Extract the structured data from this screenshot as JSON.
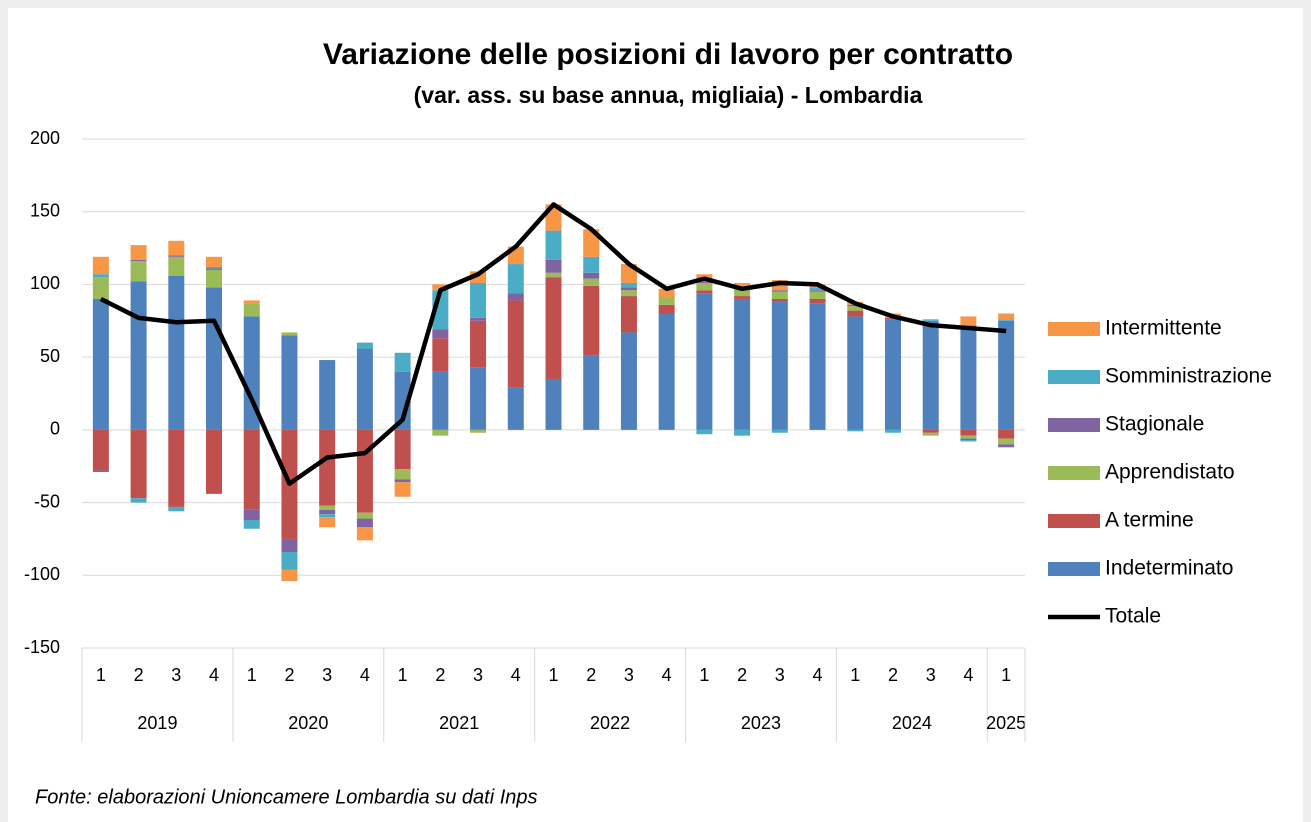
{
  "chart_data": {
    "type": "stacked-bar-line",
    "title": "Variazione delle posizioni di lavoro per contratto",
    "subtitle": "(var. ass. su base annua, migliaia) - Lombardia",
    "note": "Fonte: elaborazioni Unioncamere Lombardia su dati Inps",
    "categories": [
      "1",
      "2",
      "3",
      "4",
      "1",
      "2",
      "3",
      "4",
      "1",
      "2",
      "3",
      "4",
      "1",
      "2",
      "3",
      "4",
      "1",
      "2",
      "3",
      "4",
      "1",
      "2",
      "3",
      "4",
      "1"
    ],
    "year_groups": [
      {
        "name": "2019",
        "size": 4
      },
      {
        "name": "2020",
        "size": 4
      },
      {
        "name": "2021",
        "size": 4
      },
      {
        "name": "2022",
        "size": 4
      },
      {
        "name": "2023",
        "size": 4
      },
      {
        "name": "2024",
        "size": 4
      },
      {
        "name": "2025",
        "size": 1
      }
    ],
    "series": [
      {
        "name": "Indeterminato",
        "color": "#4f81bd",
        "values": [
          90,
          102,
          106,
          98,
          78,
          65,
          48,
          56,
          40,
          40,
          43,
          29,
          35,
          51,
          67,
          80,
          94,
          90,
          88,
          87,
          78,
          76,
          75,
          72,
          75
        ]
      },
      {
        "name": "A termine",
        "color": "#c0504d",
        "values": [
          -28,
          -47,
          -53,
          -44,
          -55,
          -75,
          -52,
          -57,
          -27,
          23,
          32,
          60,
          70,
          48,
          25,
          6,
          2,
          2,
          2,
          3,
          4,
          1,
          -2,
          -4,
          -6
        ]
      },
      {
        "name": "Apprendistato",
        "color": "#9bbb59",
        "values": [
          15,
          14,
          13,
          12,
          9,
          2,
          -3,
          -4,
          -7,
          -4,
          -2,
          0,
          3,
          5,
          4,
          5,
          5,
          5,
          5,
          5,
          3,
          1,
          -2,
          -2,
          -4
        ]
      },
      {
        "name": "Stagionale",
        "color": "#8064a2",
        "values": [
          -1,
          1,
          1,
          1,
          -7,
          -9,
          -3,
          -6,
          -2,
          6,
          2,
          5,
          9,
          4,
          2,
          0,
          1,
          1,
          1,
          1,
          1,
          0,
          0,
          -1,
          -2
        ]
      },
      {
        "name": "Somministrazione",
        "color": "#4bacc6",
        "values": [
          2,
          -3,
          -3,
          1,
          -6,
          -12,
          -2,
          4,
          13,
          27,
          24,
          20,
          20,
          11,
          3,
          0,
          -3,
          -4,
          -2,
          2,
          -1,
          -2,
          1,
          -1,
          1
        ]
      },
      {
        "name": "Intermittente",
        "color": "#f79646",
        "values": [
          12,
          10,
          10,
          7,
          2,
          -8,
          -7,
          -9,
          -10,
          4,
          8,
          12,
          18,
          19,
          13,
          6,
          5,
          3,
          7,
          2,
          2,
          2,
          0,
          6,
          4
        ]
      }
    ],
    "total": {
      "name": "Totale",
      "color": "#000000",
      "values": [
        90,
        77,
        74,
        75,
        21,
        -37,
        -19,
        -16,
        7,
        96,
        107,
        126,
        155,
        138,
        114,
        97,
        104,
        97,
        101,
        100,
        87,
        78,
        72,
        70,
        68
      ]
    },
    "ylim": [
      -150,
      200
    ],
    "yticks": [
      -150,
      -100,
      -50,
      0,
      50,
      100,
      150,
      200
    ],
    "grid": true,
    "legend": "right"
  }
}
